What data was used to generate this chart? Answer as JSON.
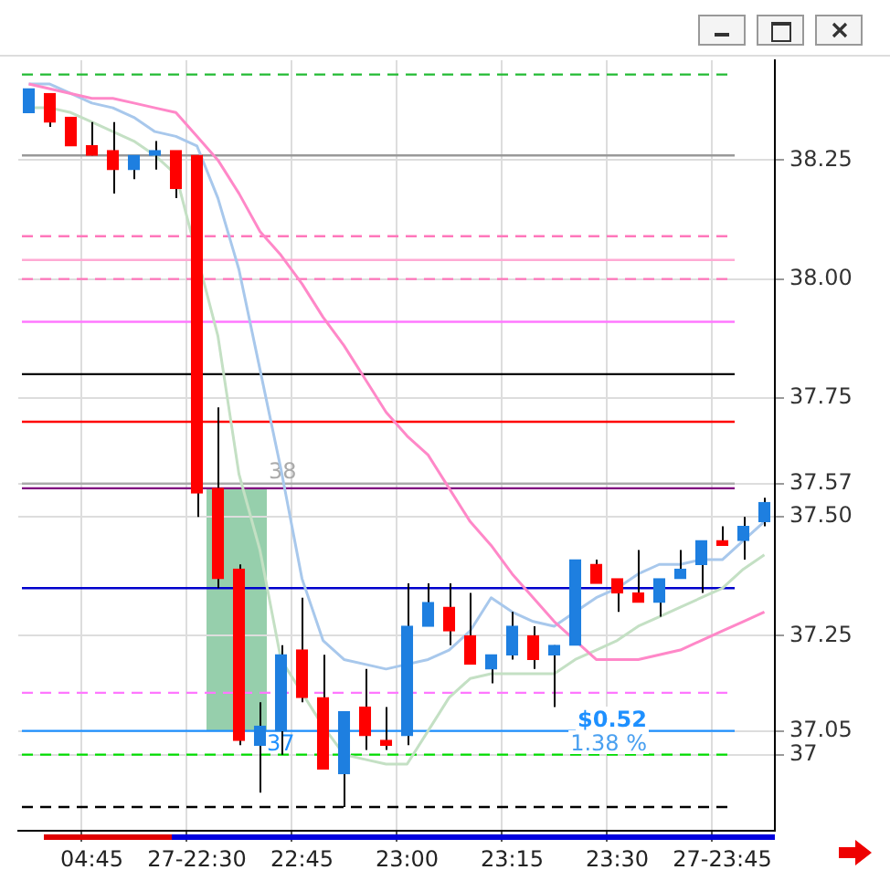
{
  "chart_data": {
    "type": "candlestick",
    "categories": [
      null,
      null,
      null,
      "04:45",
      null,
      null,
      null,
      null,
      "27-22:30",
      null,
      null,
      null,
      null,
      "22:45",
      null,
      null,
      null,
      null,
      "23:00",
      null,
      null,
      null,
      null,
      "23:15",
      null,
      null,
      null,
      null,
      "23:30",
      null,
      null,
      null,
      null,
      "27-23:45",
      null,
      null
    ],
    "ohlc": [
      [
        38.35,
        38.4,
        38.35,
        38.4
      ],
      [
        38.39,
        38.39,
        38.32,
        38.33
      ],
      [
        38.34,
        38.34,
        38.28,
        38.28
      ],
      [
        38.28,
        38.33,
        38.26,
        38.26
      ],
      [
        38.27,
        38.33,
        38.18,
        38.23
      ],
      [
        38.23,
        38.26,
        38.21,
        38.26
      ],
      [
        38.26,
        38.29,
        38.23,
        38.27
      ],
      [
        38.27,
        38.27,
        38.17,
        38.19
      ],
      [
        38.26,
        38.26,
        37.5,
        37.55
      ],
      [
        37.56,
        37.73,
        37.35,
        37.37
      ],
      [
        37.39,
        37.4,
        37.02,
        37.03
      ],
      [
        37.02,
        37.11,
        36.92,
        37.06
      ],
      [
        37.05,
        37.23,
        37.0,
        37.21
      ],
      [
        37.22,
        37.33,
        37.11,
        37.12
      ],
      [
        37.12,
        37.21,
        36.97,
        36.97
      ],
      [
        36.96,
        37.09,
        36.89,
        37.09
      ],
      [
        37.1,
        37.18,
        37.01,
        37.04
      ],
      [
        37.03,
        37.1,
        37.01,
        37.02
      ],
      [
        37.04,
        37.36,
        37.02,
        37.27
      ],
      [
        37.27,
        37.36,
        37.27,
        37.32
      ],
      [
        37.31,
        37.36,
        37.23,
        37.26
      ],
      [
        37.25,
        37.34,
        37.19,
        37.19
      ],
      [
        37.18,
        37.21,
        37.15,
        37.21
      ],
      [
        37.21,
        37.3,
        37.2,
        37.27
      ],
      [
        37.25,
        37.27,
        37.18,
        37.2
      ],
      [
        37.21,
        37.23,
        37.1,
        37.23
      ],
      [
        37.23,
        37.41,
        37.23,
        37.41
      ],
      [
        37.4,
        37.41,
        37.36,
        37.36
      ],
      [
        37.37,
        37.37,
        37.3,
        37.34
      ],
      [
        37.34,
        37.43,
        37.32,
        37.32
      ],
      [
        37.32,
        37.37,
        37.29,
        37.37
      ],
      [
        37.37,
        37.43,
        37.37,
        37.39
      ],
      [
        37.4,
        37.45,
        37.34,
        37.45
      ],
      [
        37.45,
        37.48,
        37.44,
        37.44
      ],
      [
        37.45,
        37.5,
        37.41,
        37.48
      ],
      [
        37.49,
        37.54,
        37.48,
        37.53
      ]
    ],
    "colors": [
      "#1e7fe0",
      "#ff0000",
      "#ff0000",
      "#ff0000",
      "#ff0000",
      "#1e7fe0",
      "#1e7fe0",
      "#ff0000",
      "#ff0000",
      "#ff0000",
      "#ff0000",
      "#1e7fe0",
      "#1e7fe0",
      "#ff0000",
      "#ff0000",
      "#1e7fe0",
      "#ff0000",
      "#ff0000",
      "#1e7fe0",
      "#1e7fe0",
      "#ff0000",
      "#ff0000",
      "#1e7fe0",
      "#1e7fe0",
      "#ff0000",
      "#1e7fe0",
      "#1e7fe0",
      "#ff0000",
      "#ff0000",
      "#ff0000",
      "#1e7fe0",
      "#1e7fe0",
      "#1e7fe0",
      "#ff0000",
      "#1e7fe0",
      "#1e7fe0"
    ],
    "series": [
      {
        "type": "line",
        "color": "#ff88c8",
        "values": [
          38.41,
          38.4,
          38.39,
          38.38,
          38.38,
          38.37,
          38.36,
          38.35,
          38.3,
          38.25,
          38.18,
          38.1,
          38.05,
          37.99,
          37.92,
          37.86,
          37.79,
          37.72,
          37.67,
          37.63,
          37.56,
          37.49,
          37.44,
          37.38,
          37.33,
          37.28,
          37.24,
          37.2,
          37.2,
          37.2,
          37.21,
          37.22,
          37.24,
          37.26,
          37.28,
          37.3
        ]
      },
      {
        "type": "line",
        "color": "#a8c8ec",
        "values": [
          38.41,
          38.41,
          38.39,
          38.37,
          38.36,
          38.34,
          38.31,
          38.3,
          38.28,
          38.17,
          38.02,
          37.81,
          37.6,
          37.37,
          37.24,
          37.2,
          37.19,
          37.18,
          37.19,
          37.2,
          37.22,
          37.26,
          37.33,
          37.3,
          37.28,
          37.27,
          37.3,
          37.33,
          37.35,
          37.38,
          37.4,
          37.4,
          37.41,
          37.41,
          37.45,
          37.49
        ]
      },
      {
        "type": "line",
        "color": "#c4e0c4",
        "values": [
          38.36,
          38.36,
          38.35,
          38.33,
          38.31,
          38.29,
          38.26,
          38.22,
          null,
          37.88,
          37.59,
          37.43,
          37.2,
          37.13,
          37.06,
          37.0,
          36.99,
          36.98,
          36.98,
          37.05,
          37.12,
          37.16,
          37.17,
          37.17,
          37.17,
          37.17,
          37.2,
          37.22,
          37.24,
          37.27,
          37.29,
          37.31,
          37.33,
          37.35,
          37.39,
          37.42
        ]
      }
    ],
    "ylim": [
      36.84,
      38.46
    ],
    "yticks": [
      37.0,
      {
        "value": 37.05,
        "label": "37.05"
      },
      {
        "value": 37.25,
        "label": "37.25"
      },
      {
        "value": 37.5,
        "label": "37.50"
      },
      {
        "value": 37.57,
        "label": "37.57"
      },
      {
        "value": 37.75,
        "label": "37.75"
      },
      {
        "value": 38,
        "label": "38.00"
      },
      {
        "value": 38.25,
        "label": "38.25"
      }
    ],
    "ref_lines": [
      {
        "axis": "y",
        "value": 38.43,
        "color": "#22bb33",
        "line_style": "dashed"
      },
      {
        "axis": "y",
        "value": 38.26,
        "color": "#999999",
        "line_style": "solid"
      },
      {
        "axis": "y",
        "value": 38.09,
        "color": "#ff77bb",
        "line_style": "dashed"
      },
      {
        "axis": "y",
        "value": 38.04,
        "color": "#ffaad4",
        "line_style": "solid"
      },
      {
        "axis": "y",
        "value": 38.0,
        "color": "#ff77bb",
        "line_style": "dashed"
      },
      {
        "axis": "y",
        "value": 37.91,
        "color": "#ff77ff",
        "line_style": "solid"
      },
      {
        "axis": "y",
        "value": 37.8,
        "color": "#000000",
        "line_style": "solid"
      },
      {
        "axis": "y",
        "value": 37.7,
        "color": "#ff0000",
        "line_style": "solid"
      },
      {
        "axis": "y",
        "value": 37.57,
        "color": "#aaaaaa",
        "line_style": "solid"
      },
      {
        "axis": "y",
        "value": 37.56,
        "color": "#800080",
        "line_style": "solid"
      },
      {
        "axis": "y",
        "value": 37.35,
        "color": "#0000cc",
        "line_style": "solid"
      },
      {
        "axis": "y",
        "value": 37.13,
        "color": "#ff77ff",
        "line_style": "dashed"
      },
      {
        "axis": "y",
        "value": 37.05,
        "color": "#1e90ff",
        "line_style": "solid"
      },
      {
        "axis": "y",
        "value": 37.0,
        "color": "#00dd00",
        "line_style": "dashed"
      },
      {
        "axis": "y",
        "value": 36.89,
        "color": "#000000",
        "line_style": "dashed"
      }
    ],
    "annotations": [
      "38",
      "37",
      "$0.52",
      "1.38 %"
    ],
    "grid": true,
    "marker": "none",
    "line_style": "solid"
  }
}
